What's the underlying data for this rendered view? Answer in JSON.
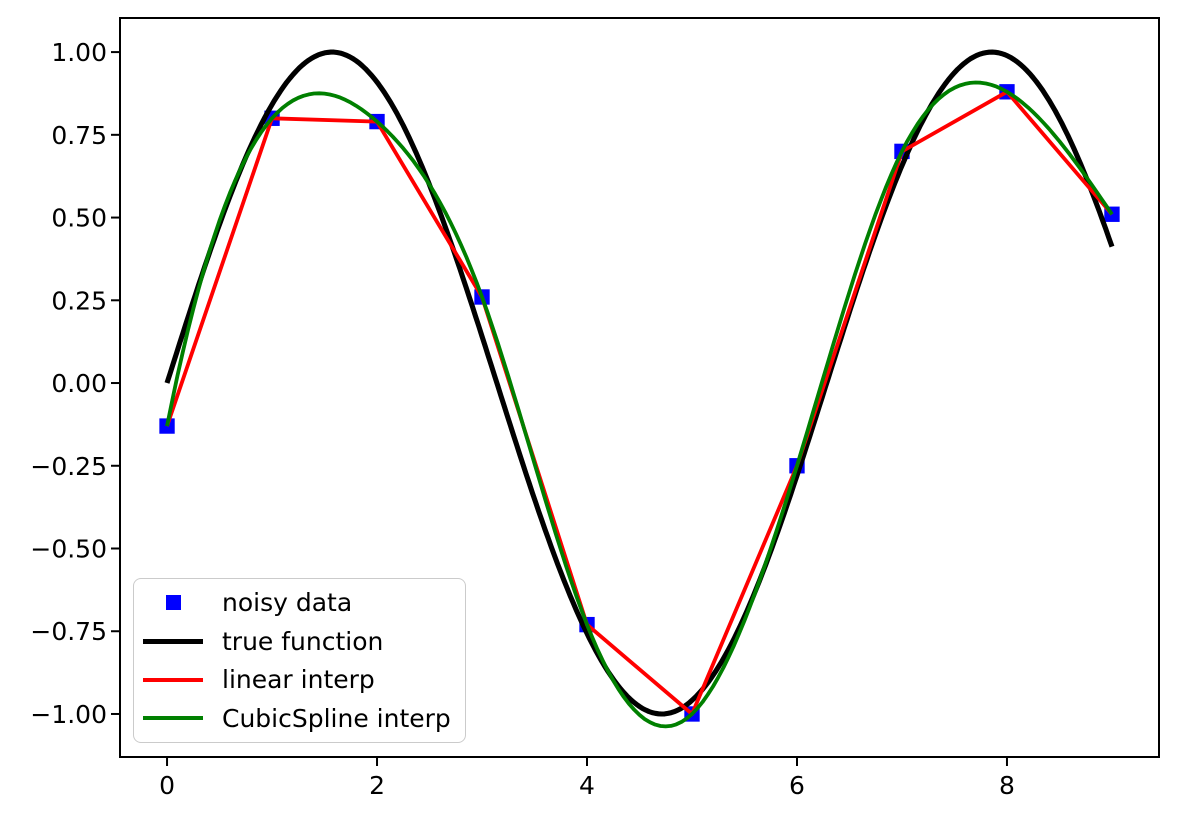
{
  "chart_data": {
    "type": "line",
    "title": "",
    "xlabel": "",
    "ylabel": "",
    "grid": false,
    "background": "#ffffff",
    "axes_color": "#000000",
    "xlim": [
      -0.448,
      9.448
    ],
    "ylim": [
      -1.13,
      1.103
    ],
    "xticks": [
      0,
      2,
      4,
      6,
      8
    ],
    "xtick_labels": [
      "0",
      "2",
      "4",
      "6",
      "8"
    ],
    "yticks": [
      -1.0,
      -0.75,
      -0.5,
      -0.25,
      0.0,
      0.25,
      0.5,
      0.75,
      1.0
    ],
    "ytick_labels": [
      "−1.00",
      "−0.75",
      "−0.50",
      "−0.25",
      "0.00",
      "0.25",
      "0.50",
      "0.75",
      "1.00"
    ],
    "points": {
      "x": [
        0,
        1,
        2,
        3,
        4,
        5,
        6,
        7,
        8,
        9
      ],
      "y": [
        -0.13,
        0.8,
        0.79,
        0.26,
        -0.73,
        -1.0,
        -0.25,
        0.7,
        0.88,
        0.51
      ]
    },
    "series": [
      {
        "name": "noisy data",
        "type": "scatter",
        "marker": "square",
        "color": "#0000ff",
        "markersize_pt": 6
      },
      {
        "name": "true function",
        "type": "function-sin",
        "color": "#000000",
        "linewidth_pt": 2,
        "x_range": [
          0,
          9
        ]
      },
      {
        "name": "linear interp",
        "type": "linear-interpolation",
        "color": "#ff0000",
        "linewidth_pt": 1.5
      },
      {
        "name": "CubicSpline interp",
        "type": "cubic-spline",
        "boundary": "not-a-knot",
        "color": "#008000",
        "linewidth_pt": 1.5
      }
    ],
    "legend": {
      "position": "lower-left",
      "border_color": "#cbcbcb",
      "items": [
        {
          "label": "noisy data",
          "marker": "square",
          "color": "#0000ff"
        },
        {
          "label": "true function",
          "marker": "line",
          "color": "#000000",
          "linewidth_pt": 2
        },
        {
          "label": "linear interp",
          "marker": "line",
          "color": "#ff0000",
          "linewidth_pt": 1.5
        },
        {
          "label": "CubicSpline interp",
          "marker": "line",
          "color": "#008000",
          "linewidth_pt": 1.5
        }
      ]
    }
  }
}
